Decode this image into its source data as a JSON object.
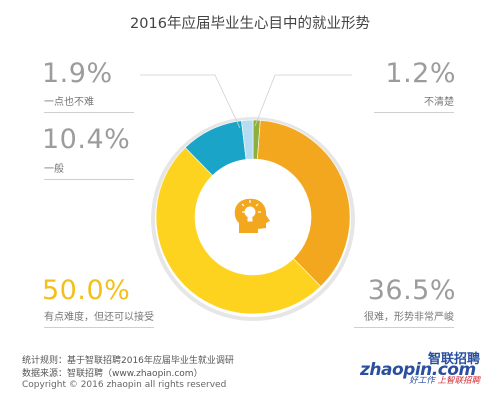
{
  "chart_data": {
    "type": "pie",
    "title": "2016年应届毕业生心目中的就业形势",
    "slices": [
      {
        "label": "不清楚",
        "value": 1.2,
        "value_label": "1.2%",
        "color": "#8db03b"
      },
      {
        "label": "很难，形势非常严峻",
        "value": 36.5,
        "value_label": "36.5%",
        "color": "#f3a71e"
      },
      {
        "label": "有点难度，但还可以接受",
        "value": 50.0,
        "value_label": "50.0%",
        "color": "#fdd31f"
      },
      {
        "label": "一般",
        "value": 10.4,
        "value_label": "10.4%",
        "color": "#1aa4c8"
      },
      {
        "label": "一点也不难",
        "value": 1.9,
        "value_label": "1.9%",
        "color": "#b6dcf1"
      }
    ],
    "start_at": "top",
    "direction": "clockwise",
    "donut": true,
    "center_icon": "head-with-lightbulb-icon",
    "center_icon_color": "#f3a71e",
    "highlight_color": "#f5bf1a",
    "muted_label_color": "#9c9c9c"
  },
  "footer": {
    "rule_line": "统计规则：基于智联招聘2016年应届毕业生就业调研",
    "source_line": "数据来源：智联招聘（www.zhaopin.com）",
    "copyright": "Copyright © 2016 zhaopin all rights reserved"
  },
  "logo": {
    "wordmark": "zhaopin.com",
    "chinese_name": "智联招聘",
    "slogan_part1": "好工作",
    "slogan_part2": "上智联招聘"
  }
}
